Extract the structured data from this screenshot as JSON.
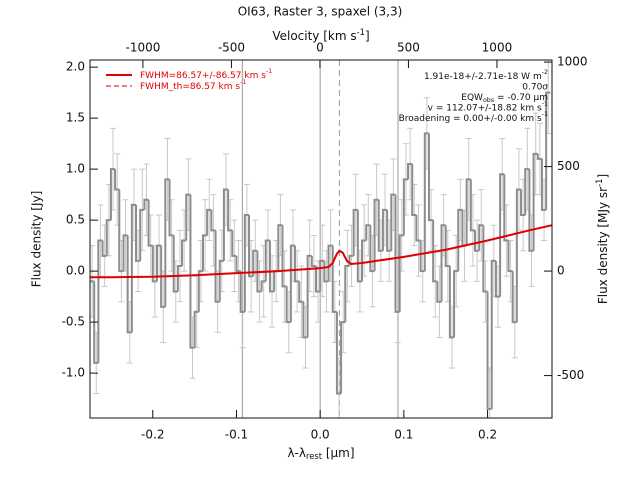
{
  "chart_data": {
    "type": "histogram",
    "title": "OI63, Raster 3, spaxel (3,3)",
    "x2label": {
      "text": "Velocity [km s",
      "sup": "-1",
      "after": "]"
    },
    "xlabel": {
      "text": "λ-λ",
      "sub": "rest",
      "after": " [μm]"
    },
    "ylabel": "Flux density [Jy]",
    "y2label": {
      "text": "Flux density [MJy sr",
      "sup": "-1",
      "after": "]"
    },
    "xlim": [
      -0.275,
      0.277
    ],
    "xticks": [
      -0.2,
      -0.1,
      {
        "value": 0,
        "label": "0.0"
      },
      0.1,
      0.2
    ],
    "x2lim": [
      -1299,
      1311
    ],
    "x2ticks": [
      -1000,
      -500,
      0,
      500,
      1000
    ],
    "ylim": [
      -1.44,
      2.07
    ],
    "yticks": [
      {
        "value": -1,
        "label": "-1.0"
      },
      -0.5,
      {
        "value": 0,
        "label": "0.0"
      },
      0.5,
      {
        "value": 1,
        "label": "1.0"
      },
      1.5,
      {
        "value": 2,
        "label": "2.0"
      }
    ],
    "y2lim": [
      -703,
      1010
    ],
    "y2ticks": [
      -500,
      0,
      500,
      1000
    ],
    "color": "#8c8c8c",
    "error_color": "#c8c8c8",
    "bins": [
      -0.275,
      -0.27,
      -0.265,
      -0.26,
      -0.255,
      -0.25,
      -0.245,
      -0.24,
      -0.235,
      -0.23,
      -0.225,
      -0.22,
      -0.215,
      -0.21,
      -0.205,
      -0.2,
      -0.195,
      -0.19,
      -0.185,
      -0.18,
      -0.175,
      -0.17,
      -0.165,
      -0.16,
      -0.155,
      -0.15,
      -0.145,
      -0.14,
      -0.135,
      -0.13,
      -0.125,
      -0.12,
      -0.115,
      -0.11,
      -0.105,
      -0.1,
      -0.095,
      -0.09,
      -0.085,
      -0.08,
      -0.075,
      -0.07,
      -0.065,
      -0.06,
      -0.055,
      -0.05,
      -0.045,
      -0.04,
      -0.035,
      -0.03,
      -0.025,
      -0.02,
      -0.015,
      -0.01,
      -0.005,
      0,
      0.005,
      0.01,
      0.015,
      0.02,
      0.025,
      0.03,
      0.035,
      0.04,
      0.045,
      0.05,
      0.055,
      0.06,
      0.065,
      0.07,
      0.075,
      0.08,
      0.085,
      0.09,
      0.095,
      0.1,
      0.105,
      0.11,
      0.115,
      0.12,
      0.125,
      0.13,
      0.135,
      0.14,
      0.145,
      0.15,
      0.155,
      0.16,
      0.165,
      0.17,
      0.175,
      0.18,
      0.185,
      0.19,
      0.195,
      0.2,
      0.205,
      0.21,
      0.215,
      0.22,
      0.225,
      0.23,
      0.235,
      0.24,
      0.245,
      0.25,
      0.255,
      0.26,
      0.265,
      0.27,
      0.275
    ],
    "values": [
      -0.1,
      -0.9,
      0.3,
      0.15,
      0.5,
      1.0,
      0.8,
      0.0,
      0.35,
      -0.6,
      0.65,
      0.1,
      0.6,
      0.7,
      0.25,
      -0.1,
      0.25,
      -0.35,
      0.9,
      0.35,
      -0.2,
      0.05,
      0.3,
      0.75,
      -0.75,
      -0.4,
      0.0,
      0.35,
      0.6,
      0.4,
      -0.3,
      0.1,
      0.8,
      0.4,
      0.15,
      0.0,
      -0.4,
      0.55,
      -0.05,
      0.2,
      -0.2,
      -0.1,
      0.3,
      -0.2,
      0.0,
      0.45,
      -0.15,
      -0.5,
      0.25,
      -0.1,
      -0.3,
      -0.65,
      0.15,
      0.05,
      -0.2,
      0.1,
      -0.1,
      0.25,
      -0.4,
      -1.2,
      -0.5,
      0.05,
      0.15,
      0.6,
      -0.1,
      0.3,
      0.45,
      0.0,
      0.7,
      0.2,
      0.6,
      0.2,
      0.75,
      -0.4,
      0.35,
      0.9,
      1.05,
      0.55,
      0.3,
      0.0,
      1.35,
      0.5,
      -0.1,
      -0.3,
      0.45,
      0.05,
      -0.65,
      0.0,
      0.6,
      0.25,
      0.9,
      0.4,
      0.2,
      0.45,
      -0.2,
      -1.35,
      0.1,
      -0.25,
      0.95,
      0.3,
      0.0,
      -0.5,
      0.8,
      0.55,
      1.0,
      0.2,
      1.15,
      1.1,
      0.6,
      1.75
    ],
    "errors": [
      0.35,
      0.3,
      0.35,
      0.3,
      0.35,
      0.4,
      0.35,
      0.3,
      0.35,
      0.3,
      0.35,
      0.3,
      0.4,
      0.35,
      0.3,
      0.35,
      0.3,
      0.35,
      0.4,
      0.35,
      0.3,
      0.35,
      0.3,
      0.35,
      0.3,
      0.35,
      0.3,
      0.35,
      0.3,
      0.35,
      0.3,
      0.3,
      0.35,
      0.3,
      0.35,
      0.3,
      0.35,
      0.3,
      0.35,
      0.3,
      0.3,
      0.35,
      0.3,
      0.35,
      0.3,
      0.3,
      0.35,
      0.3,
      0.35,
      0.3,
      0.35,
      0.3,
      0.35,
      0.3,
      0.3,
      0.35,
      0.3,
      0.35,
      0.3,
      0.35,
      0.3,
      0.35,
      0.3,
      0.35,
      0.3,
      0.35,
      0.3,
      0.35,
      0.35,
      0.3,
      0.35,
      0.3,
      0.35,
      0.3,
      0.35,
      0.35,
      0.35,
      0.3,
      0.35,
      0.3,
      0.35,
      0.3,
      0.35,
      0.35,
      0.3,
      0.35,
      0.3,
      0.35,
      0.3,
      0.35,
      0.4,
      0.35,
      0.3,
      0.35,
      0.3,
      0.4,
      0.35,
      0.3,
      0.35,
      0.35,
      0.3,
      0.35,
      0.4,
      0.35,
      0.4,
      0.35,
      0.4,
      0.35,
      0.3,
      0.4
    ],
    "fit": {
      "color": "#e00000",
      "x": [
        -0.275,
        -0.25,
        -0.2,
        -0.15,
        -0.1,
        -0.05,
        0,
        0.01,
        0.015,
        0.02,
        0.023,
        0.027,
        0.032,
        0.037,
        0.05,
        0.1,
        0.15,
        0.2,
        0.25,
        0.277
      ],
      "y": [
        -0.06,
        -0.06,
        -0.055,
        -0.04,
        -0.02,
        0.0,
        0.03,
        0.04,
        0.08,
        0.17,
        0.2,
        0.18,
        0.1,
        0.07,
        0.08,
        0.14,
        0.21,
        0.3,
        0.4,
        0.45
      ]
    },
    "vlines": [
      -0.093,
      0,
      0.093
    ],
    "dashed_line": 0.023,
    "legend": [
      {
        "text": "FWHM=86.57+/-86.57 km s",
        "sup": "-1",
        "style": "solid"
      },
      {
        "text": "FWHM_th=86.57 km s",
        "sup": "-1",
        "style": "dashed"
      }
    ],
    "annotations": [
      {
        "text": "1.91e-18+/-2.71e-18 W m",
        "sup": "-2"
      },
      {
        "text": "0.70σ"
      },
      {
        "text": "EQW",
        "sub": "obs",
        "after": " = -0.70 μm"
      },
      {
        "text": "v = 112.07+/-18.82 km s",
        "sup": "-1"
      },
      {
        "text": "Broadening = 0.00+/-0.00 km s",
        "sup": "-1"
      }
    ]
  }
}
